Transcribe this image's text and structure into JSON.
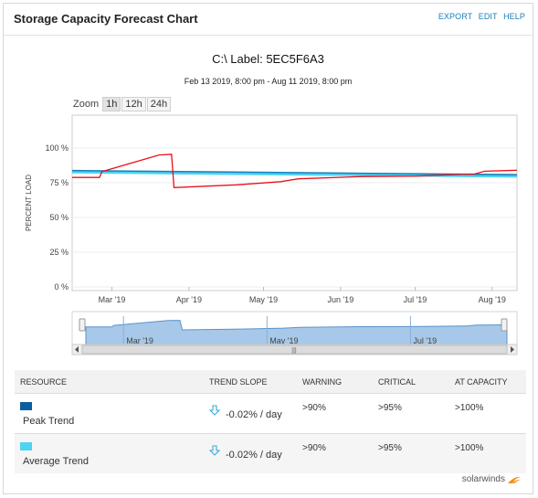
{
  "header": {
    "title": "Storage Capacity Forecast Chart",
    "links": [
      "EXPORT",
      "EDIT",
      "HELP"
    ]
  },
  "chart": {
    "title": "C:\\ Label: 5EC5F6A3",
    "subtitle": "Feb 13 2019, 8:00 pm - Aug 11 2019, 8:00 pm",
    "zoom_label": "Zoom",
    "zoom_options": [
      "1h",
      "12h",
      "24h"
    ],
    "ylabel": "PERCENT LOAD",
    "y_ticks": [
      "100 %",
      "75 %",
      "50 %",
      "25 %",
      "0 %"
    ],
    "x_ticks": [
      "Mar '19",
      "Apr '19",
      "May '19",
      "Jun '19",
      "Jul '19",
      "Aug '19"
    ],
    "nav_ticks": [
      "Mar '19",
      "May '19",
      "Jul '19"
    ],
    "colors": {
      "peak_line": "#e8111a",
      "trend_dark": "#1b7fb8",
      "trend_light": "#4fd3f2",
      "navigator": "#a7c8e8"
    }
  },
  "chart_data": {
    "type": "line",
    "ylabel": "PERCENT LOAD",
    "ylim": [
      0,
      100
    ],
    "x_range": [
      "2019-02-13",
      "2019-08-11"
    ],
    "series": [
      {
        "name": "Peak Trend",
        "color": "#1b7fb8",
        "x": [
          "2019-02-13",
          "2019-08-11"
        ],
        "values": [
          83.5,
          80.5
        ]
      },
      {
        "name": "Average Trend",
        "color": "#4fd3f2",
        "x": [
          "2019-02-13",
          "2019-08-11"
        ],
        "values": [
          82.5,
          79.5
        ]
      },
      {
        "color": "#e8111a",
        "x": [
          "2019-02-13",
          "2019-02-24",
          "2019-02-25",
          "2019-03-20",
          "2019-03-25",
          "2019-03-26",
          "2019-04-20",
          "2019-05-08",
          "2019-05-15",
          "2019-06-10",
          "2019-07-01",
          "2019-07-25",
          "2019-07-29",
          "2019-08-11"
        ],
        "values": [
          78.8,
          78.8,
          83.0,
          95.0,
          95.5,
          71.5,
          73.5,
          75.8,
          77.8,
          79.5,
          79.8,
          81.3,
          83.3,
          84.0
        ]
      }
    ]
  },
  "table": {
    "headers": [
      "RESOURCE",
      "TREND SLOPE",
      "WARNING",
      "CRITICAL",
      "AT CAPACITY"
    ],
    "rows": [
      {
        "name": "Peak Trend",
        "color": "#0d5e9e",
        "slope": "-0.02% / day",
        "warning": ">90%",
        "critical": ">95%",
        "capacity": ">100%"
      },
      {
        "name": "Average Trend",
        "color": "#4fd3f2",
        "slope": "-0.02% / day",
        "warning": ">90%",
        "critical": ">95%",
        "capacity": ">100%"
      }
    ]
  },
  "footer": {
    "brand": "solarwinds"
  }
}
